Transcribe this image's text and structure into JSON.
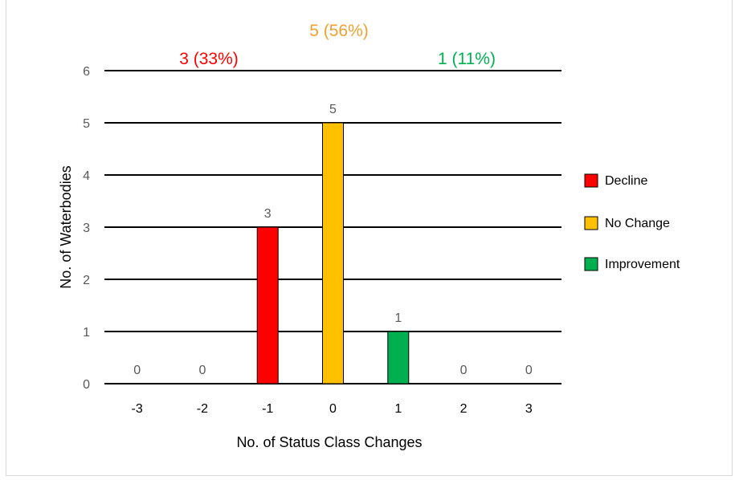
{
  "chart_data": {
    "type": "bar",
    "categories": [
      "-3",
      "-2",
      "-1",
      "0",
      "1",
      "2",
      "3"
    ],
    "values": [
      0,
      0,
      3,
      5,
      1,
      0,
      0
    ],
    "data_labels": [
      "0",
      "0",
      "3",
      "5",
      "1",
      "0",
      "0"
    ],
    "bar_colors": [
      "#ff0000",
      "#ff0000",
      "#ff0000",
      "#ffc000",
      "#00b050",
      "#00b050",
      "#00b050"
    ],
    "xlabel": "No. of Status Class Changes",
    "ylabel": "No. of Waterbodies",
    "ylim": [
      0,
      6
    ],
    "yticks": [
      "0",
      "1",
      "2",
      "3",
      "4",
      "5",
      "6"
    ],
    "grid": true,
    "legend": {
      "position": "right",
      "entries": [
        {
          "label": "Decline",
          "color": "#ff0000"
        },
        {
          "label": "No Change",
          "color": "#ffc000"
        },
        {
          "label": "Improvement",
          "color": "#00b050"
        }
      ]
    },
    "annotations": [
      {
        "text": "3 (33%)",
        "color": "#ff0000"
      },
      {
        "text": "5 (56%)",
        "color": "#f0a030"
      },
      {
        "text": "1 (11%)",
        "color": "#00b050"
      }
    ]
  }
}
